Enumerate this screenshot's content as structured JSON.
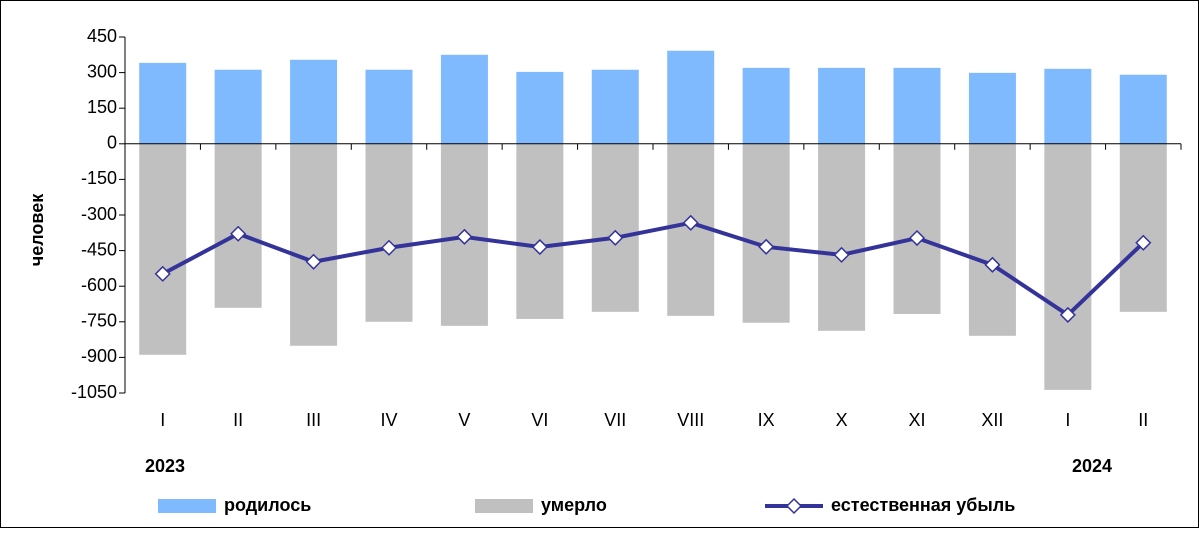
{
  "chart_data": {
    "type": "bar",
    "ylabel": "человек",
    "categories": [
      "I",
      "II",
      "III",
      "IV",
      "V",
      "VI",
      "VII",
      "VIII",
      "IX",
      "X",
      "XI",
      "XII",
      "I",
      "II"
    ],
    "annotations": [
      "2023",
      "2024"
    ],
    "series": [
      {
        "name": "родилось",
        "type": "bar",
        "color": "#7fbaff",
        "values": [
          341,
          312,
          354,
          312,
          375,
          303,
          312,
          392,
          320,
          320,
          320,
          299,
          316,
          291
        ]
      },
      {
        "name": "умерло",
        "type": "bar",
        "color": "#c0c0c0",
        "values": [
          -889,
          -691,
          -851,
          -750,
          -767,
          -738,
          -708,
          -725,
          -754,
          -788,
          -717,
          -809,
          -1037,
          -708
        ]
      },
      {
        "name": "естественная убыль",
        "type": "line",
        "color": "#333399",
        "values": [
          -548,
          -379,
          -497,
          -438,
          -392,
          -435,
          -396,
          -333,
          -434,
          -468,
          -397,
          -510,
          -721,
          -417
        ]
      }
    ],
    "ylim": [
      -1050,
      450
    ],
    "yticks": [
      450,
      300,
      150,
      0,
      -150,
      -300,
      -450,
      -600,
      -750,
      -900,
      -1050
    ],
    "legend": "bottom"
  }
}
